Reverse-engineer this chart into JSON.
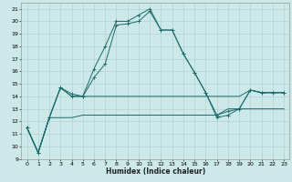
{
  "xlabel": "Humidex (Indice chaleur)",
  "ylabel": "",
  "background_color": "#cce8e8",
  "grid_color": "#aacccc",
  "line_color": "#1a6b6b",
  "xlim": [
    -0.5,
    23.5
  ],
  "ylim": [
    9,
    21.5
  ],
  "yticks": [
    9,
    10,
    11,
    12,
    13,
    14,
    15,
    16,
    17,
    18,
    19,
    20,
    21
  ],
  "xticks": [
    0,
    1,
    2,
    3,
    4,
    5,
    6,
    7,
    8,
    9,
    10,
    11,
    12,
    13,
    14,
    15,
    16,
    17,
    18,
    19,
    20,
    21,
    22,
    23
  ],
  "y_flat14": [
    11.5,
    9.5,
    12.3,
    14.7,
    14.0,
    14.0,
    14.0,
    14.0,
    14.0,
    14.0,
    14.0,
    14.0,
    14.0,
    14.0,
    14.0,
    14.0,
    14.0,
    14.0,
    14.0,
    14.0,
    14.5,
    14.3,
    14.3,
    14.3
  ],
  "y_flat12": [
    11.5,
    9.5,
    12.3,
    12.3,
    12.3,
    12.5,
    12.5,
    12.5,
    12.5,
    12.5,
    12.5,
    12.5,
    12.5,
    12.5,
    12.5,
    12.5,
    12.5,
    12.5,
    13.0,
    13.0,
    13.0,
    13.0,
    13.0,
    13.0
  ],
  "y_main": [
    11.5,
    9.5,
    12.3,
    14.7,
    14.0,
    14.0,
    16.2,
    18.0,
    20.0,
    20.0,
    20.5,
    21.0,
    19.3,
    19.3,
    17.4,
    15.9,
    14.3,
    12.3,
    12.5,
    13.0,
    14.5,
    14.3,
    14.3,
    14.3
  ],
  "y_sec": [
    11.5,
    9.5,
    12.3,
    14.7,
    14.2,
    14.0,
    15.5,
    16.6,
    19.7,
    19.8,
    20.0,
    20.8,
    19.3,
    19.3,
    17.4,
    15.9,
    14.3,
    12.5,
    12.8,
    13.0,
    14.5,
    14.3,
    14.3,
    14.3
  ],
  "lw": 0.7,
  "markersize": 2.5,
  "xlabel_fontsize": 5.5,
  "tick_fontsize": 4.5
}
